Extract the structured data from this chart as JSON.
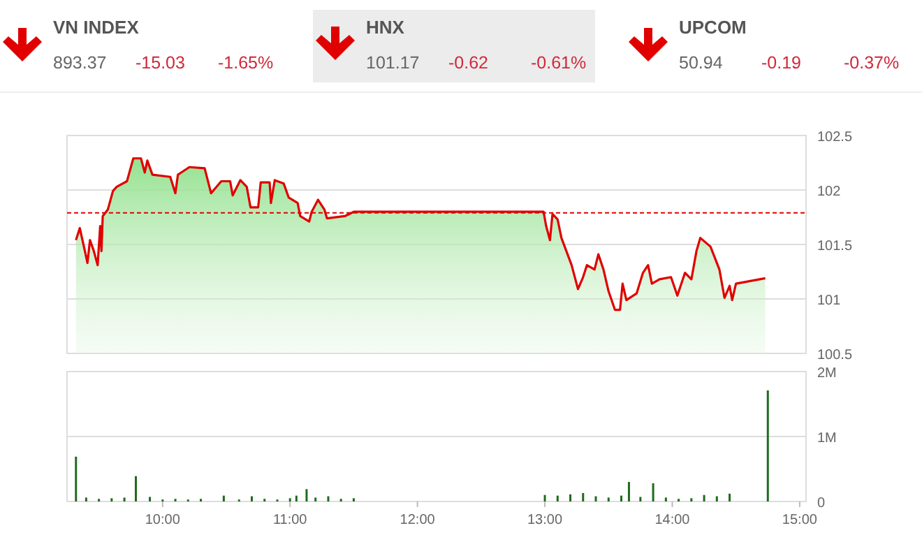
{
  "chart_data": [
    {
      "type": "other",
      "annotations": [
        "VN INDEX",
        "893.37",
        "-15.03",
        "-1.65%",
        "HNX",
        "101.17",
        "-0.62",
        "-0.61%",
        "UPCOM",
        "50.94",
        "-0.19",
        "-0.37%"
      ]
    },
    {
      "type": "area",
      "x": [
        9.32,
        9.35,
        9.39,
        9.41,
        9.43,
        9.46,
        9.49,
        9.51,
        9.52,
        9.53,
        9.57,
        9.61,
        9.64,
        9.72,
        9.77,
        9.83,
        9.86,
        9.88,
        9.92,
        10.06,
        10.1,
        10.12,
        10.21,
        10.33,
        10.38,
        10.46,
        10.53,
        10.55,
        10.61,
        10.66,
        10.69,
        10.75,
        10.77,
        10.84,
        10.85,
        10.88,
        10.95,
        10.99,
        11.06,
        11.08,
        11.15,
        11.17,
        11.22,
        11.27,
        11.29,
        11.43,
        11.5,
        12.99,
        13.01,
        13.04,
        13.06,
        13.1,
        13.13,
        13.21,
        13.26,
        13.3,
        13.33,
        13.39,
        13.42,
        13.46,
        13.5,
        13.55,
        13.59,
        13.61,
        13.64,
        13.72,
        13.77,
        13.81,
        13.84,
        13.9,
        13.99,
        14.04,
        14.1,
        14.15,
        14.19,
        14.22,
        14.3,
        14.37,
        14.41,
        14.45,
        14.47,
        14.5,
        14.73
      ],
      "series": [
        {
          "color": "#e00000",
          "values": [
            101.54,
            101.65,
            101.44,
            101.33,
            101.54,
            101.44,
            101.31,
            101.67,
            101.44,
            101.76,
            101.82,
            101.99,
            102.03,
            102.08,
            102.29,
            102.29,
            102.16,
            102.27,
            102.14,
            102.12,
            101.97,
            102.14,
            102.21,
            102.2,
            101.97,
            102.08,
            102.08,
            101.95,
            102.09,
            102.03,
            101.84,
            101.84,
            102.07,
            102.07,
            101.88,
            102.09,
            102.06,
            101.93,
            101.88,
            101.76,
            101.71,
            101.8,
            101.91,
            101.82,
            101.74,
            101.76,
            101.8,
            101.8,
            101.67,
            101.54,
            101.78,
            101.73,
            101.56,
            101.31,
            101.09,
            101.2,
            101.31,
            101.27,
            101.41,
            101.27,
            101.07,
            100.9,
            100.9,
            101.14,
            100.99,
            101.05,
            101.24,
            101.31,
            101.14,
            101.18,
            101.2,
            101.03,
            101.24,
            101.18,
            101.44,
            101.56,
            101.48,
            101.27,
            101.01,
            101.12,
            100.99,
            101.14,
            101.19
          ]
        }
      ],
      "xlim": [
        9.25,
        15.05
      ],
      "ylim": [
        100.5,
        102.5
      ],
      "yticks": [
        100.5,
        101,
        101.5,
        102,
        102.5
      ],
      "grid": "y",
      "tick_labels": "y",
      "ref_lines": [
        {
          "axis": "y",
          "value": 101.79,
          "color": "#e00000",
          "line_style": "dashed"
        }
      ]
    },
    {
      "type": "bar",
      "x": [
        9.32,
        9.4,
        9.5,
        9.6,
        9.7,
        9.79,
        9.9,
        10.0,
        10.1,
        10.2,
        10.3,
        10.48,
        10.6,
        10.7,
        10.8,
        10.9,
        11.0,
        11.05,
        11.13,
        11.2,
        11.3,
        11.4,
        11.5,
        13.0,
        13.1,
        13.2,
        13.3,
        13.4,
        13.5,
        13.6,
        13.66,
        13.75,
        13.85,
        13.95,
        14.05,
        14.15,
        14.25,
        14.35,
        14.45,
        14.75
      ],
      "series": [
        {
          "color": "#1e6b1e",
          "values": [
            690000,
            60000,
            40000,
            50000,
            60000,
            390000,
            70000,
            30000,
            40000,
            30000,
            40000,
            90000,
            30000,
            80000,
            40000,
            30000,
            50000,
            90000,
            190000,
            60000,
            80000,
            40000,
            50000,
            100000,
            90000,
            110000,
            130000,
            80000,
            60000,
            90000,
            300000,
            70000,
            280000,
            60000,
            40000,
            50000,
            100000,
            80000,
            120000,
            1710000
          ]
        }
      ],
      "xlim": [
        9.25,
        15.05
      ],
      "xticks": [
        {
          "value": 10,
          "label": "10:00"
        },
        {
          "value": 11,
          "label": "11:00"
        },
        {
          "value": 12,
          "label": "12:00"
        },
        {
          "value": 13,
          "label": "13:00"
        },
        {
          "value": 14,
          "label": "14:00"
        },
        {
          "value": 15,
          "label": "15:00"
        }
      ],
      "ylim": [
        0,
        2000000
      ],
      "yticks": [
        0,
        {
          "value": 1000000,
          "label": "1M"
        },
        {
          "value": 2000000,
          "label": "2M"
        }
      ],
      "grid": "y"
    }
  ]
}
